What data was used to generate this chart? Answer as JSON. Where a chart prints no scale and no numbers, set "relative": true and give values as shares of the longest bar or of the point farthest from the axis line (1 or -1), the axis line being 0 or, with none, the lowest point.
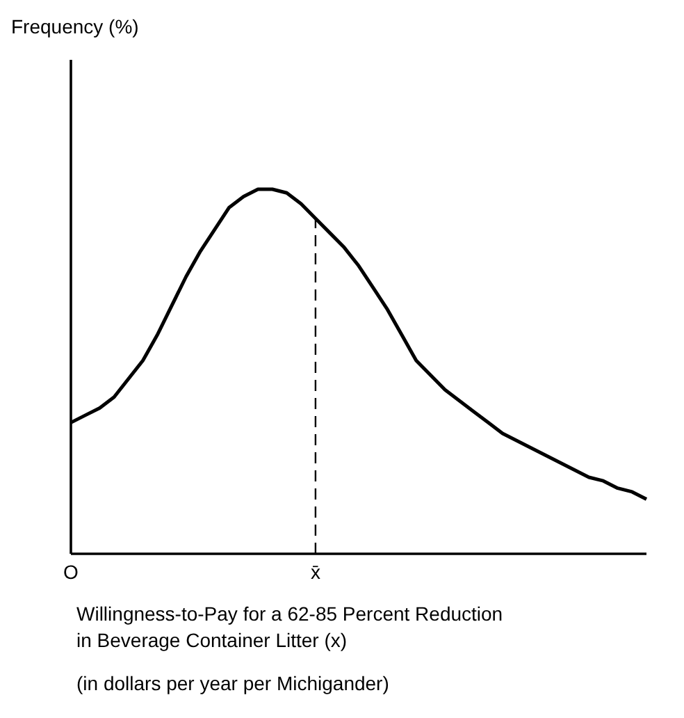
{
  "chart_data": {
    "type": "line",
    "relative": true,
    "xlabel": "Willingness-to-Pay for a 62-85 Percent Reduction in Beverage Container Litter (x)",
    "annotations": [
      "Frequency (%)",
      "(in dollars per year per Michigander)"
    ],
    "categories": [
      "O",
      null,
      null,
      null,
      null,
      null,
      null,
      null,
      null,
      null,
      null,
      null,
      null,
      null,
      null,
      null,
      null,
      "x̄",
      null,
      null,
      null,
      null,
      null,
      null,
      null,
      null,
      null,
      null,
      null,
      null,
      null,
      null,
      null,
      null,
      null,
      null,
      null,
      null,
      null,
      null,
      null
    ],
    "ref_lines": [
      {
        "axis": "x",
        "value": "x̄",
        "line_style": "dashed"
      }
    ],
    "series": [
      {
        "color": "#000000",
        "values": [
          0.36,
          0.38,
          0.4,
          0.43,
          0.48,
          0.53,
          0.6,
          0.68,
          0.76,
          0.83,
          0.89,
          0.95,
          0.98,
          1,
          1,
          0.99,
          0.96,
          0.92,
          0.88,
          0.84,
          0.79,
          0.73,
          0.67,
          0.6,
          0.53,
          0.49,
          0.45,
          0.42,
          0.39,
          0.36,
          0.33,
          0.31,
          0.29,
          0.27,
          0.25,
          0.23,
          0.21,
          0.2,
          0.18,
          0.17,
          0.15
        ]
      }
    ],
    "marker": "none",
    "line_style": "solid"
  }
}
